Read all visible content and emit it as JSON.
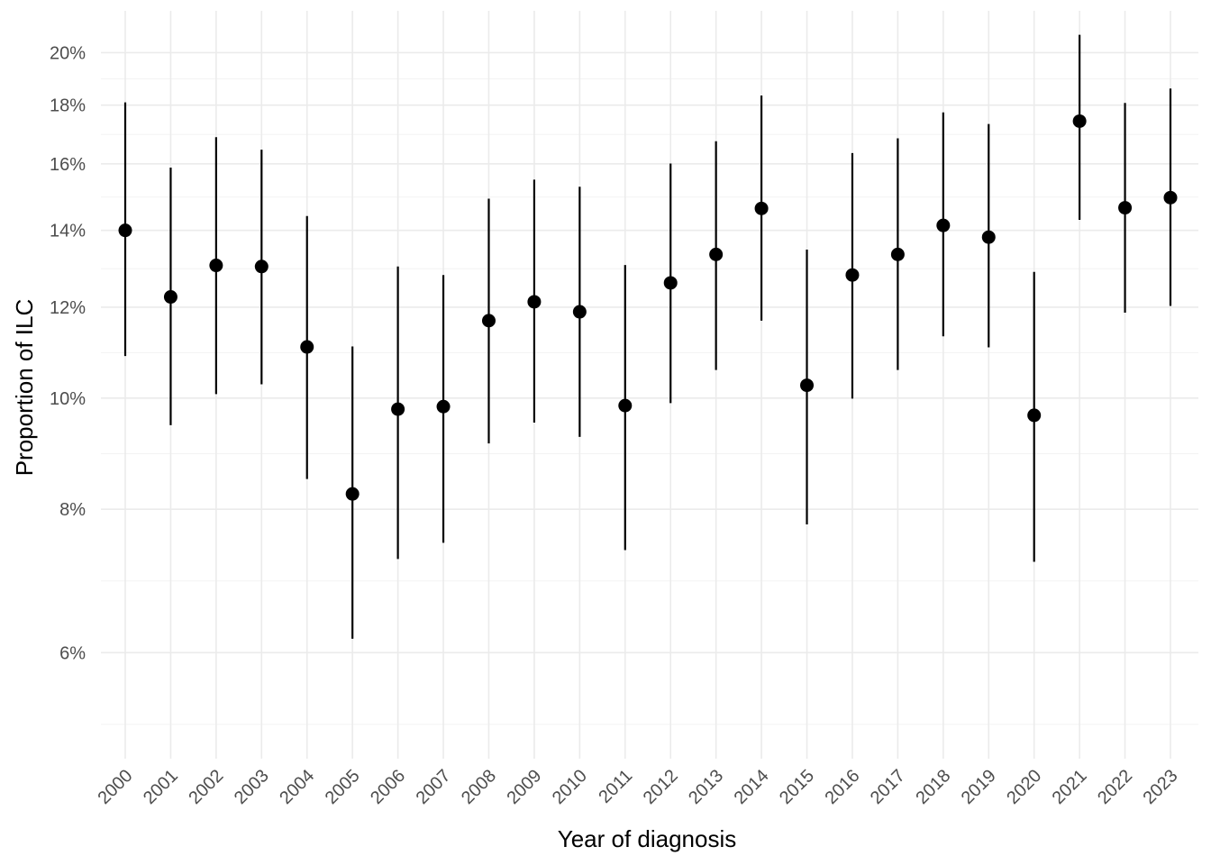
{
  "chart_data": {
    "type": "scatter",
    "subtype": "point-with-error-bars",
    "xlabel": "Year of diagnosis",
    "ylabel": "Proportion of ILC",
    "yscale": "log",
    "ylim": [
      0.0485,
      0.2175
    ],
    "y_ticks": [
      0.06,
      0.08,
      0.1,
      0.12,
      0.14,
      0.16,
      0.18,
      0.2
    ],
    "y_tick_labels": [
      "6%",
      "8%",
      "10%",
      "12%",
      "14%",
      "16%",
      "18%",
      "20%"
    ],
    "categories": [
      "2000",
      "2001",
      "2002",
      "2003",
      "2004",
      "2005",
      "2006",
      "2007",
      "2008",
      "2009",
      "2010",
      "2011",
      "2012",
      "2013",
      "2014",
      "2015",
      "2016",
      "2017",
      "2018",
      "2019",
      "2020",
      "2021",
      "2022",
      "2023"
    ],
    "values": [
      0.14,
      0.1225,
      0.1305,
      0.1302,
      0.1108,
      0.0825,
      0.0978,
      0.0983,
      0.1168,
      0.1213,
      0.1189,
      0.0985,
      0.126,
      0.1334,
      0.1463,
      0.1026,
      0.128,
      0.1334,
      0.1414,
      0.1381,
      0.0966,
      0.1743,
      0.1465,
      0.1495
    ],
    "lower": [
      0.1088,
      0.0947,
      0.1008,
      0.1028,
      0.085,
      0.0617,
      0.0724,
      0.0748,
      0.0913,
      0.0952,
      0.0925,
      0.0737,
      0.099,
      0.1058,
      0.1168,
      0.0776,
      0.0999,
      0.1058,
      0.1132,
      0.1107,
      0.072,
      0.143,
      0.1187,
      0.1203
    ],
    "upper": [
      0.181,
      0.1588,
      0.1688,
      0.1646,
      0.1441,
      0.1109,
      0.1302,
      0.128,
      0.1492,
      0.155,
      0.1528,
      0.1306,
      0.1601,
      0.1674,
      0.1835,
      0.1347,
      0.1635,
      0.1684,
      0.1774,
      0.1733,
      0.1288,
      0.2073,
      0.1808,
      0.1861
    ],
    "point_color": "#000000",
    "grid": true,
    "legend": "none"
  }
}
